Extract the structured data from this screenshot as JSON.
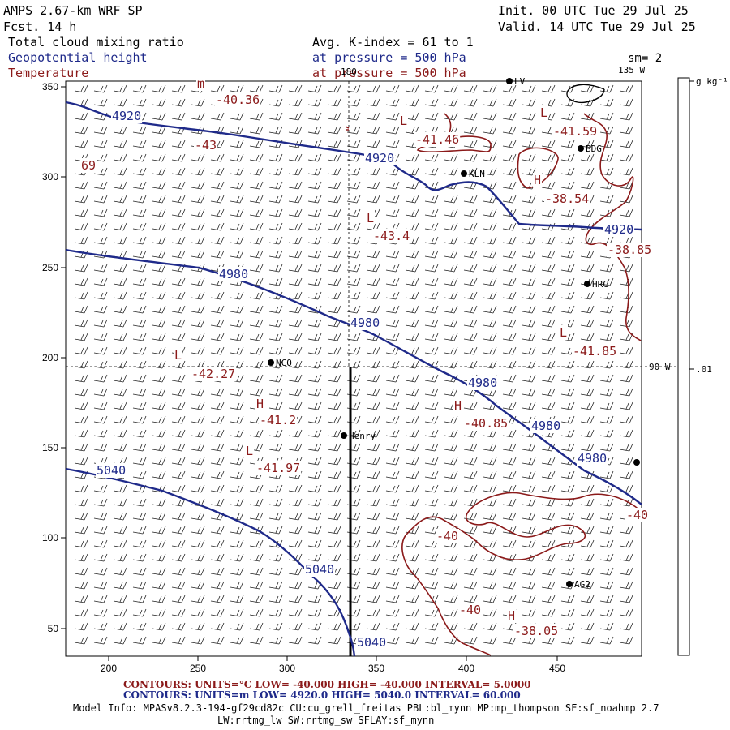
{
  "header": {
    "model": "AMPS 2.67-km WRF SP",
    "fcst": "Fcst.   14 h",
    "init": "Init. 00 UTC Tue 29 Jul 25",
    "valid": "Valid. 14 UTC Tue 29 Jul 25",
    "field1": "Total cloud mixing ratio",
    "field2": "Geopotential height",
    "field3": "Temperature",
    "avg": "Avg. K-index =  61 to   1",
    "press1": "at pressure =  500 hPa",
    "press2": "at pressure =  500 hPa",
    "sm": "sm= 2"
  },
  "colors": {
    "blue": "#1f2a8a",
    "red": "#8b1a1a",
    "black": "#000000"
  },
  "axes": {
    "x_ticks": [
      "200",
      "250",
      "300",
      "350",
      "400",
      "450"
    ],
    "y_ticks": [
      "350",
      "300",
      "250",
      "200",
      "150",
      "100",
      "50"
    ]
  },
  "map_labels": {
    "lon_180": "180",
    "lon_135w": "135 W",
    "lon_90w": "90 W",
    "height_contours": [
      {
        "text": "4920",
        "x": 138,
        "y": 148
      },
      {
        "text": "4920",
        "x": 450,
        "y": 200
      },
      {
        "text": "4920",
        "x": 745,
        "y": 288
      },
      {
        "text": "4980",
        "x": 270,
        "y": 343
      },
      {
        "text": "4980",
        "x": 432,
        "y": 403
      },
      {
        "text": "4980",
        "x": 577,
        "y": 477
      },
      {
        "text": "4980",
        "x": 655,
        "y": 530
      },
      {
        "text": "4980",
        "x": 712,
        "y": 570
      },
      {
        "text": "5040",
        "x": 119,
        "y": 585
      },
      {
        "text": "5040",
        "x": 376,
        "y": 707
      },
      {
        "text": "5040",
        "x": 440,
        "y": 797
      }
    ],
    "temp_labels": [
      {
        "text": "-40.36",
        "x": 266,
        "y": 128
      },
      {
        "text": "-43",
        "x": 240,
        "y": 184
      },
      {
        "text": "69",
        "x": 100,
        "y": 209
      },
      {
        "text": "-41.46",
        "x": 512,
        "y": 177
      },
      {
        "text": "-41.59",
        "x": 682,
        "y": 167
      },
      {
        "text": "-38.54",
        "x": 672,
        "y": 250
      },
      {
        "text": "-43.4",
        "x": 460,
        "y": 296
      },
      {
        "text": "-38.85",
        "x": 749,
        "y": 313
      },
      {
        "text": "-41.85",
        "x": 706,
        "y": 438
      },
      {
        "text": "-42.27",
        "x": 236,
        "y": 466
      },
      {
        "text": "-41.2",
        "x": 320,
        "y": 523
      },
      {
        "text": "-40.85",
        "x": 572,
        "y": 527
      },
      {
        "text": "-41.97",
        "x": 316,
        "y": 582
      },
      {
        "text": "-40",
        "x": 772,
        "y": 640
      },
      {
        "text": "-40",
        "x": 538,
        "y": 666
      },
      {
        "text": "-40",
        "x": 566,
        "y": 757
      },
      {
        "text": "-38.05",
        "x": 634,
        "y": 783
      }
    ],
    "hl_letters": [
      {
        "text": "m",
        "x": 243,
        "y": 108
      },
      {
        "text": "L",
        "x": 493,
        "y": 154
      },
      {
        "text": "L",
        "x": 666,
        "y": 144
      },
      {
        "text": "H",
        "x": 658,
        "y": 227
      },
      {
        "text": "L",
        "x": 452,
        "y": 274
      },
      {
        "text": "L",
        "x": 690,
        "y": 415
      },
      {
        "text": "L",
        "x": 215,
        "y": 443
      },
      {
        "text": "H",
        "x": 316,
        "y": 503
      },
      {
        "text": "H",
        "x": 560,
        "y": 505
      },
      {
        "text": "L",
        "x": 303,
        "y": 561
      },
      {
        "text": "H",
        "x": 626,
        "y": 764
      }
    ],
    "stations": [
      {
        "text": "BDG",
        "x": 724,
        "y": 187
      },
      {
        "text": "KLN",
        "x": 580,
        "y": 218
      },
      {
        "text": "HRC",
        "x": 732,
        "y": 354
      },
      {
        "text": "NCO",
        "x": 342,
        "y": 451
      },
      {
        "text": "Henry",
        "x": 432,
        "y": 541
      },
      {
        "text": "AG2",
        "x": 710,
        "y": 724
      },
      {
        "text": "LV",
        "x": 636,
        "y": 104
      }
    ]
  },
  "colorbar": {
    "unit": "g kg⁻¹",
    "value": ".01"
  },
  "footer": {
    "temp_contours": "CONTOURS:  UNITS=°C  LOW= -40.000      HIGH= -40.000      INTERVAL=   5.0000",
    "height_contours": "CONTOURS:  UNITS=m  LOW=  4920.0       HIGH=  5040.0       INTERVAL=   60.000",
    "model_info": "Model Info: MPASv8.2.3-194-gf29cd82c CU:cu_grell_freitas PBL:bl_mynn MP:mp_thompson SF:sf_noahmp 2.7",
    "model_info2": "LW:rrtmg_lw SW:rrtmg_sw SFLAY:sf_mynn"
  }
}
